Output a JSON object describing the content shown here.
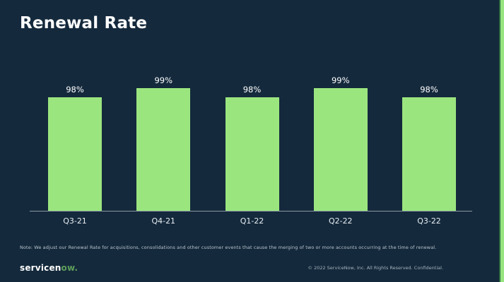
{
  "slide": {
    "title": "Renewal Rate",
    "note": "Note: We adjust our Renewal Rate for acquisitions, consolidations and other customer events that cause the merging of two or more accounts occurring at the time of renewal.",
    "footer": {
      "logo_white": "servicen",
      "logo_green": "ow.",
      "copyright": "© 2022 ServiceNow, Inc. All Rights Reserved. Confidential."
    }
  },
  "chart_data": {
    "type": "bar",
    "title": "Renewal Rate",
    "categories": [
      "Q3-21",
      "Q4-21",
      "Q1-22",
      "Q2-22",
      "Q3-22"
    ],
    "values": [
      98,
      99,
      98,
      99,
      98
    ],
    "data_labels": [
      "98%",
      "99%",
      "98%",
      "99%",
      "98%"
    ],
    "unit": "%",
    "xlabel": "",
    "ylabel": "",
    "ylim": [
      85,
      100
    ],
    "grid": false,
    "legend": false,
    "bar_color": "#9BE57F",
    "axis_line_color": "#8A98A3",
    "background_color": "#14293C",
    "label_color": "#FFFFFF"
  },
  "colors": {
    "background": "#14293C",
    "bar_green": "#9BE57F",
    "accent_strip_green": "#96E47F",
    "accent_strip_edge": "#2F6B44",
    "title_text": "#FFFFFF",
    "note_text": "#B9C5CD"
  }
}
